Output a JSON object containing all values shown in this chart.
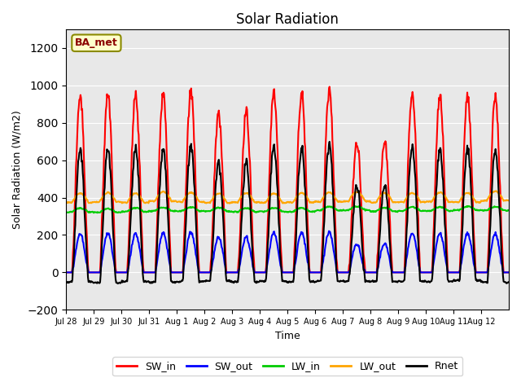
{
  "title": "Solar Radiation",
  "xlabel": "Time",
  "ylabel": "Solar Radiation (W/m2)",
  "ylim": [
    -200,
    1300
  ],
  "yticks": [
    -200,
    0,
    200,
    400,
    600,
    800,
    1000,
    1200
  ],
  "background_color": "#ffffff",
  "plot_bg_color": "#e8e8e8",
  "legend_label": "BA_met",
  "series": {
    "SW_in": {
      "color": "#ff0000",
      "lw": 1.5
    },
    "SW_out": {
      "color": "#0000ff",
      "lw": 1.5
    },
    "LW_in": {
      "color": "#00cc00",
      "lw": 1.5
    },
    "LW_out": {
      "color": "#ffa500",
      "lw": 1.5
    },
    "Rnet": {
      "color": "#000000",
      "lw": 1.5
    }
  },
  "xtick_labels": [
    "Jul 28",
    "Jul 29",
    "Jul 30",
    "Jul 31",
    "Aug 1",
    "Aug 2",
    "Aug 3",
    "Aug 4",
    "Aug 5",
    "Aug 6",
    "Aug 7",
    "Aug 8",
    "Aug 9",
    "Aug 10",
    "Aug 11",
    "Aug 12"
  ],
  "grid_color": "#ffffff",
  "grid_alpha": 1.0
}
